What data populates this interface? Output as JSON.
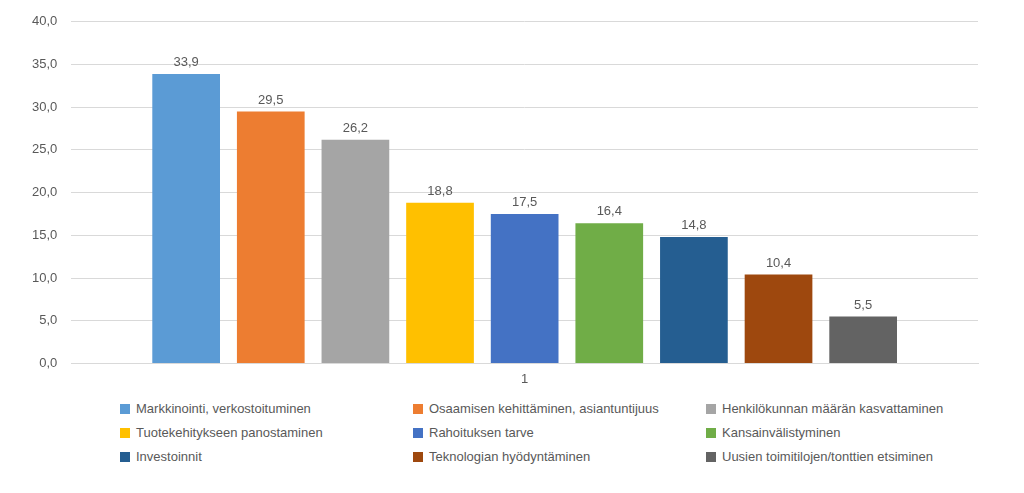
{
  "chart_data": {
    "type": "bar",
    "categories": [
      "1"
    ],
    "series": [
      {
        "name": "Markkinointi, verkostoituminen",
        "color": "#5B9BD5",
        "values": [
          33.9
        ],
        "value_labels": [
          "33,9"
        ]
      },
      {
        "name": "Osaamisen kehittäminen, asiantuntijuus",
        "color": "#ED7D31",
        "values": [
          29.5
        ],
        "value_labels": [
          "29,5"
        ]
      },
      {
        "name": "Henkilökunnan määrän kasvattaminen",
        "color": "#A5A5A5",
        "values": [
          26.2
        ],
        "value_labels": [
          "26,2"
        ]
      },
      {
        "name": "Tuotekehitykseen panostaminen",
        "color": "#FFC000",
        "values": [
          18.8
        ],
        "value_labels": [
          "18,8"
        ]
      },
      {
        "name": "Rahoituksen tarve",
        "color": "#4472C4",
        "values": [
          17.5
        ],
        "value_labels": [
          "17,5"
        ]
      },
      {
        "name": "Kansainvälistyminen",
        "color": "#70AD47",
        "values": [
          16.4
        ],
        "value_labels": [
          "16,4"
        ]
      },
      {
        "name": "Investoinnit",
        "color": "#255E91",
        "values": [
          14.8
        ],
        "value_labels": [
          "14,8"
        ]
      },
      {
        "name": "Teknologian hyödyntäminen",
        "color": "#9E480E",
        "values": [
          10.4
        ],
        "value_labels": [
          "10,4"
        ]
      },
      {
        "name": "Uusien toimitilojen/tonttien etsiminen",
        "color": "#636363",
        "values": [
          5.5
        ],
        "value_labels": [
          "5,5"
        ]
      }
    ],
    "ylim": [
      0,
      40
    ],
    "yticks": [
      {
        "value": 0,
        "label": "0,0"
      },
      {
        "value": 5,
        "label": "5,0"
      },
      {
        "value": 10,
        "label": "10,0"
      },
      {
        "value": 15,
        "label": "15,0"
      },
      {
        "value": 20,
        "label": "20,0"
      },
      {
        "value": 25,
        "label": "25,0"
      },
      {
        "value": 30,
        "label": "30,0"
      },
      {
        "value": 35,
        "label": "35,0"
      },
      {
        "value": 40,
        "label": "40,0"
      }
    ],
    "grid": true,
    "legend": "bottom",
    "data_labels": true
  }
}
